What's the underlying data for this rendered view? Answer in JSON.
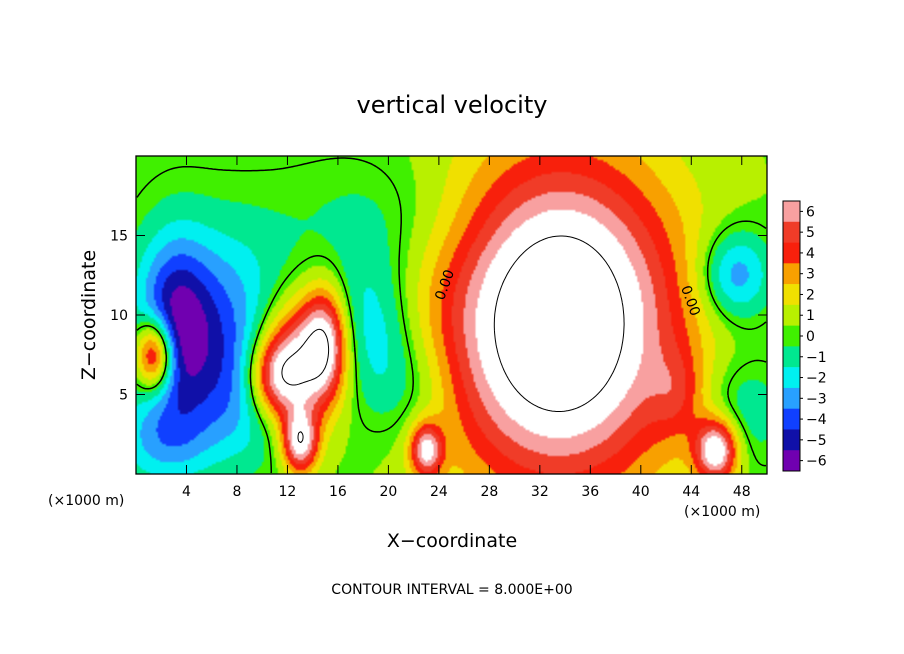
{
  "chart_data": {
    "type": "heatmap",
    "title": "vertical velocity",
    "xlabel": "X−coordinate",
    "ylabel": "Z−coordinate",
    "x_unit_left": "(×1000 m)",
    "x_unit_right": "(×1000 m)",
    "footer": "CONTOUR INTERVAL = 8.000E+00",
    "xlim": [
      0,
      50
    ],
    "ylim": [
      0,
      20
    ],
    "x_ticks": [
      4,
      8,
      12,
      16,
      20,
      24,
      28,
      32,
      36,
      40,
      44,
      48
    ],
    "y_ticks": [
      5,
      10,
      15
    ],
    "contour_labels": [
      "0.00",
      "0.00"
    ],
    "colorbar": {
      "levels": [
        6,
        5,
        4,
        3,
        2,
        1,
        0,
        -1,
        -2,
        -3,
        -4,
        -5,
        -6
      ],
      "level_labels": [
        "6",
        "5",
        "4",
        "3",
        "2",
        "1",
        "0",
        "−1",
        "−2",
        "−3",
        "−4",
        "−5",
        "−6"
      ],
      "colors": [
        "#f8a0a0",
        "#f03c28",
        "#f8200c",
        "#f8a000",
        "#f0e000",
        "#b8f000",
        "#40f000",
        "#00e890",
        "#00f0f0",
        "#28a0ff",
        "#1040ff",
        "#1010a8",
        "#7000b0"
      ],
      "above_max_color": "#ffffff"
    },
    "features": [
      {
        "kind": "updraft-core",
        "x": 33.5,
        "z": 9.5,
        "sx": 6.5,
        "sz": 7.0,
        "w": 10.5
      },
      {
        "kind": "updraft",
        "x": 13.0,
        "z": 7.0,
        "sx": 2.4,
        "sz": 2.8,
        "w": 7.5
      },
      {
        "kind": "updraft",
        "x": 11.0,
        "z": 6.0,
        "sx": 1.6,
        "sz": 1.8,
        "w": 5.0
      },
      {
        "kind": "updraft",
        "x": 15.0,
        "z": 8.5,
        "sx": 1.2,
        "sz": 2.4,
        "w": 5.0
      },
      {
        "kind": "updraft",
        "x": 1.5,
        "z": 7.5,
        "sx": 1.1,
        "sz": 1.6,
        "w": 8.0
      },
      {
        "kind": "updraft",
        "x": 13.0,
        "z": 2.0,
        "sx": 1.0,
        "sz": 1.4,
        "w": 7.0
      },
      {
        "kind": "updraft",
        "x": 23.0,
        "z": 1.5,
        "sx": 0.9,
        "sz": 1.2,
        "w": 6.0
      },
      {
        "kind": "updraft",
        "x": 46.0,
        "z": 1.5,
        "sx": 1.2,
        "sz": 1.4,
        "w": 7.5
      },
      {
        "kind": "updraft",
        "x": 43.0,
        "z": 5.0,
        "sx": 1.5,
        "sz": 2.0,
        "w": 2.0
      },
      {
        "kind": "downdraft",
        "x": 6.5,
        "z": 10.0,
        "sx": 4.0,
        "sz": 4.0,
        "w": -3.5
      },
      {
        "kind": "downdraft",
        "x": 3.0,
        "z": 9.0,
        "sx": 2.0,
        "sz": 4.0,
        "w": -4.5
      },
      {
        "kind": "downdraft",
        "x": 9.0,
        "z": 5.0,
        "sx": 3.5,
        "sz": 3.0,
        "w": -3.0
      },
      {
        "kind": "downdraft",
        "x": 18.5,
        "z": 9.0,
        "sx": 2.5,
        "sz": 3.5,
        "w": -3.0
      },
      {
        "kind": "downdraft",
        "x": 22.0,
        "z": 5.5,
        "sx": 2.5,
        "sz": 2.5,
        "w": -1.5
      },
      {
        "kind": "downdraft",
        "x": 47.5,
        "z": 12.5,
        "sx": 2.0,
        "sz": 2.0,
        "w": -4.0
      },
      {
        "kind": "downdraft",
        "x": 48.0,
        "z": 4.0,
        "sx": 2.5,
        "sz": 2.5,
        "w": -2.0
      },
      {
        "kind": "downdraft",
        "x": 2.0,
        "z": 2.0,
        "sx": 3.0,
        "sz": 2.0,
        "w": -2.5
      },
      {
        "kind": "downdraft",
        "x": 20.0,
        "z": 16.0,
        "sx": 6.0,
        "sz": 3.0,
        "w": -1.2
      }
    ]
  }
}
